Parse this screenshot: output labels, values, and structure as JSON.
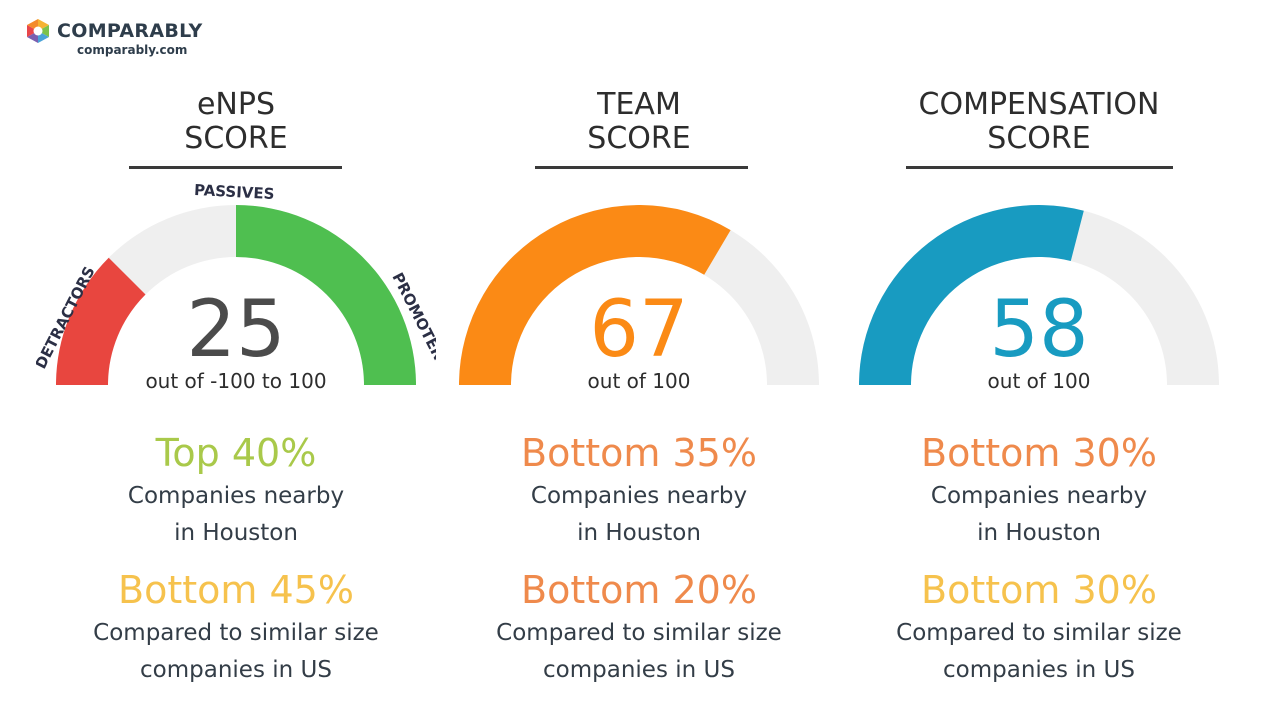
{
  "brand": {
    "name": "COMPARABLY",
    "url": "comparably.com"
  },
  "colors": {
    "red": "#e8463f",
    "green": "#4fbf50",
    "orange": "#fb8a15",
    "teal": "#189bc1",
    "track": "#efefef",
    "lime": "#a9c94a",
    "salmon": "#ef8a4c",
    "gold": "#f6c24d",
    "score_gray": "#4b4b4b"
  },
  "enps": {
    "title_line1": "eNPS",
    "title_line2": "SCORE",
    "score": "25",
    "range": "out of -100 to 100",
    "score_value": 25,
    "segments": {
      "detractors": "DETRACTORS",
      "passives": "PASSIVES",
      "promoters": "PROMOTERS"
    },
    "rank1": "Top 40%",
    "rank1_desc1": "Companies nearby",
    "rank1_desc2": "in Houston",
    "rank2": "Bottom 45%",
    "rank2_desc1": "Compared to similar size",
    "rank2_desc2": "companies in US"
  },
  "team": {
    "title_line1": "TEAM",
    "title_line2": "SCORE",
    "score": "67",
    "range": "out of 100",
    "score_value": 67,
    "rank1": "Bottom 35%",
    "rank1_desc1": "Companies nearby",
    "rank1_desc2": "in Houston",
    "rank2": "Bottom 20%",
    "rank2_desc1": "Compared to similar size",
    "rank2_desc2": "companies in US"
  },
  "compensation": {
    "title_line1": "COMPENSATION",
    "title_line2": "SCORE",
    "score": "58",
    "range": "out of 100",
    "score_value": 58,
    "rank1": "Bottom 30%",
    "rank1_desc1": "Companies nearby",
    "rank1_desc2": "in Houston",
    "rank2": "Bottom 30%",
    "rank2_desc1": "Compared to similar size",
    "rank2_desc2": "companies in US"
  }
}
